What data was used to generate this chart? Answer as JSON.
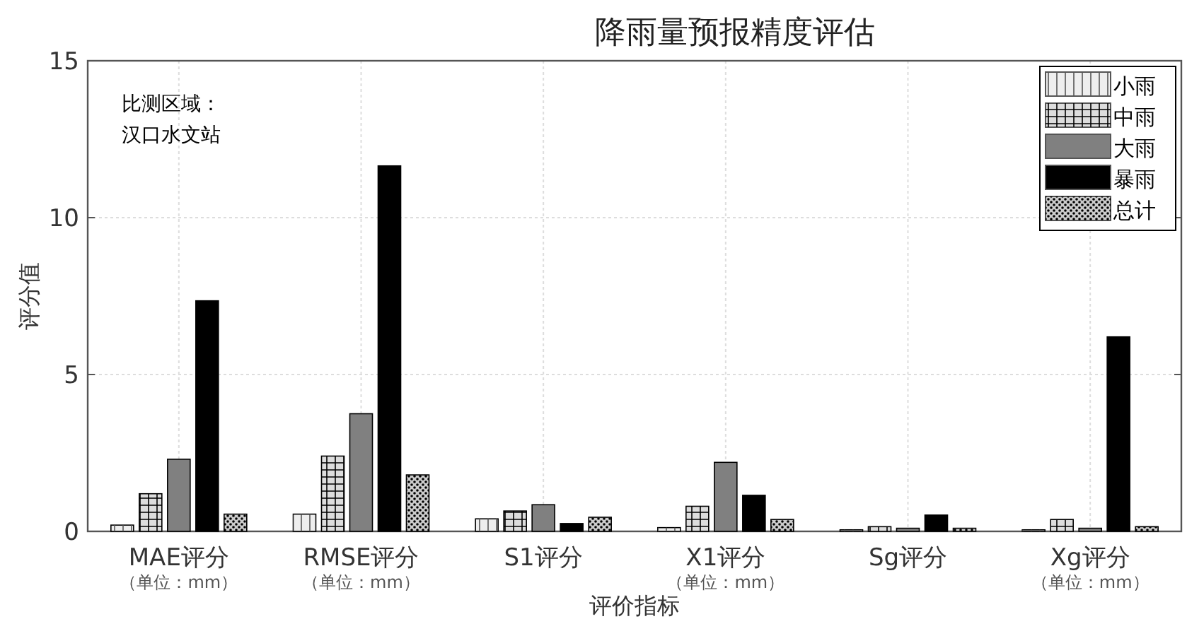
{
  "chart_data": {
    "type": "bar",
    "title": "降雨量预报精度评估",
    "xlabel": "评价指标",
    "ylabel": "评分值",
    "categories": [
      "MAE评分（单位：mm）",
      "RMSE评分（单位：mm）",
      "S1评分",
      "X1评分（单位：mm）",
      "Sg评分",
      "Xg评分（单位：mm）"
    ],
    "series": [
      {
        "name": "小雨",
        "color": "#eeeeee",
        "values": [
          0.2,
          0.55,
          0.4,
          0.12,
          0.05,
          0.05
        ]
      },
      {
        "name": "中雨",
        "color": "#dddddd",
        "values": [
          1.2,
          2.4,
          0.65,
          0.8,
          0.15,
          0.38
        ]
      },
      {
        "name": "大雨",
        "color": "#808080",
        "values": [
          2.3,
          3.75,
          0.85,
          2.2,
          0.1,
          0.1
        ]
      },
      {
        "name": "暴雨",
        "color": "#000000",
        "values": [
          7.35,
          11.65,
          0.25,
          1.15,
          0.52,
          6.2
        ]
      },
      {
        "name": "总计",
        "color": "#cccccc",
        "values": [
          0.55,
          1.8,
          0.45,
          0.38,
          0.1,
          0.15
        ]
      }
    ],
    "ylim": [
      0,
      15
    ],
    "yticks": [
      0,
      5,
      10,
      15
    ],
    "grid": true,
    "legend": "top right",
    "annotations": [
      "比测区域：汉口水文站"
    ]
  }
}
